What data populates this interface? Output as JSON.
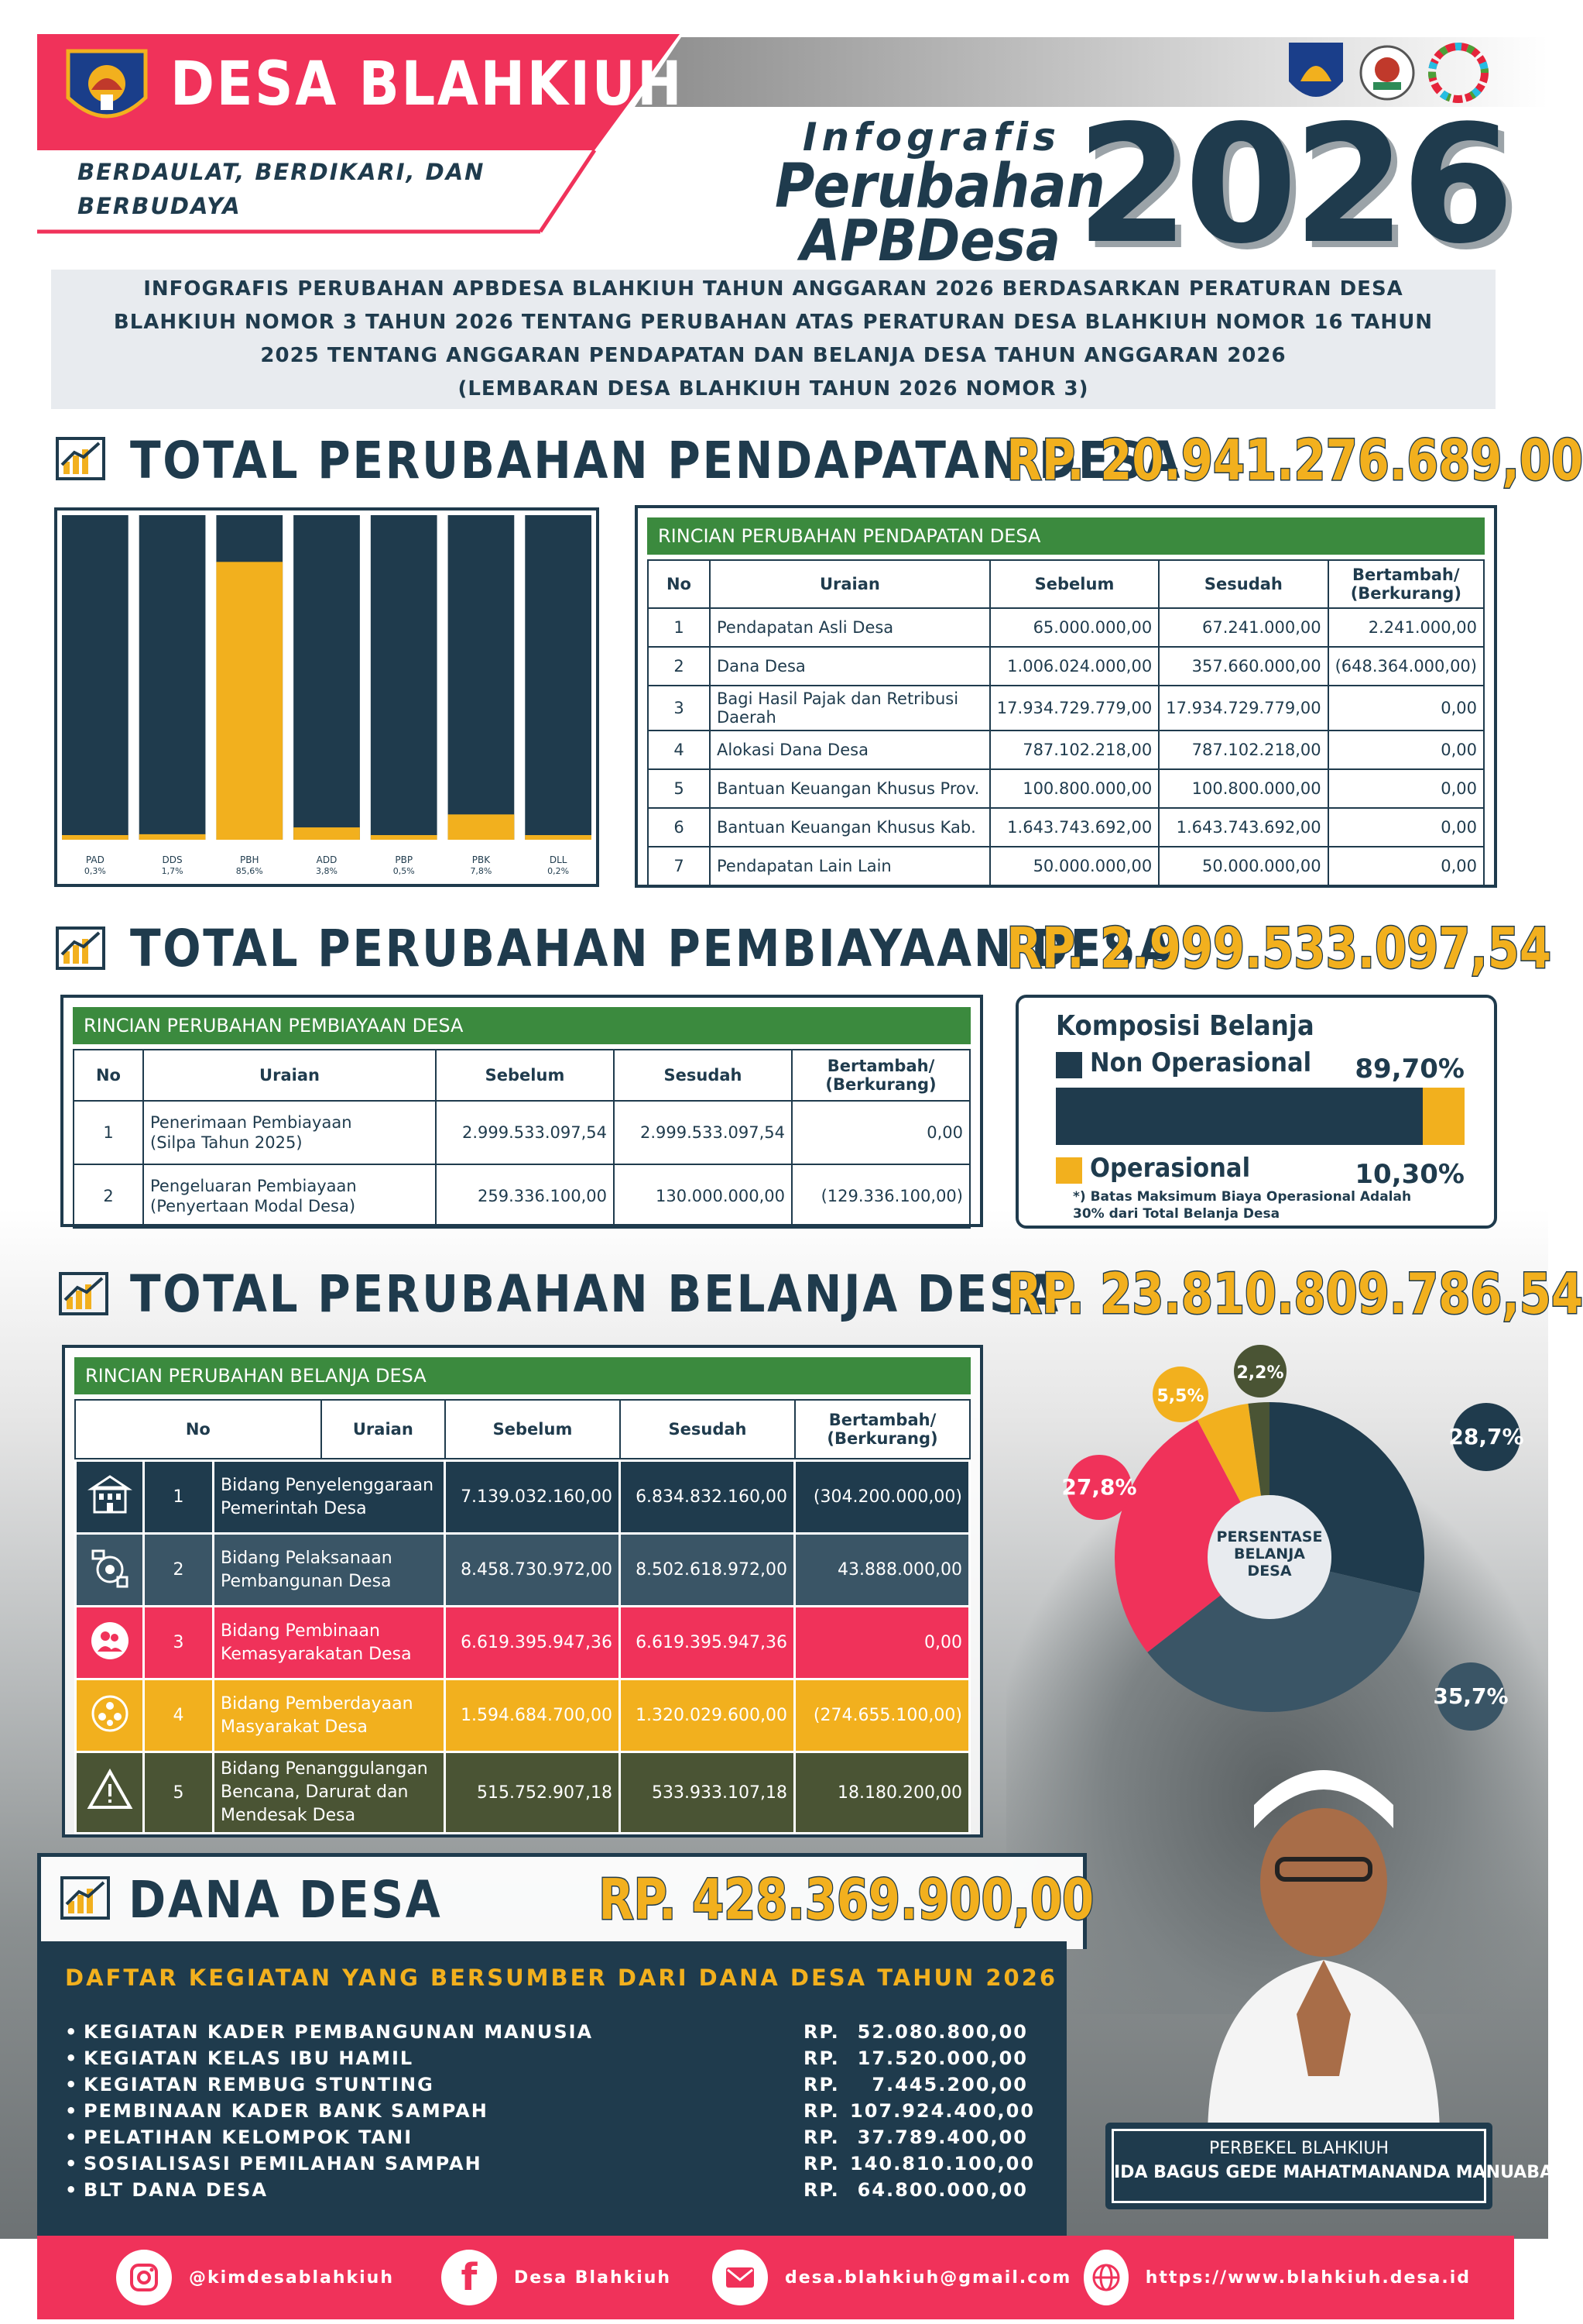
{
  "header": {
    "village": "DESA BLAHKIUH",
    "motto_line1": "BERDAULAT, BERDIKARI, DAN",
    "motto_line2": "BERBUDAYA",
    "info1": "Infografis",
    "info2": "Perubahan",
    "info3": "APBDesa",
    "year": "2026"
  },
  "intro": {
    "line1": "INFOGRAFIS PERUBAHAN APBDESA BLAHKIUH TAHUN ANGGARAN 2026 BERDASARKAN PERATURAN DESA",
    "line2": "BLAHKIUH NOMOR 3 TAHUN 2026 TENTANG PERUBAHAN ATAS PERATURAN DESA BLAHKIUH NOMOR 16 TAHUN",
    "line3": "2025 TENTANG ANGGARAN PENDAPATAN DAN BELANJA DESA TAHUN ANGGARAN 2026",
    "line4": "(LEMBARAN DESA BLAHKIUH TAHUN 2026 NOMOR 3)"
  },
  "pendapatan": {
    "title": "TOTAL PERUBAHAN PENDAPATAN DESA",
    "total": "RP. 20.941.276.689,00",
    "table_title": "RINCIAN PERUBAHAN PENDAPATAN DESA",
    "headers": [
      "No",
      "Uraian",
      "Sebelum",
      "Sesudah",
      "Bertambah/",
      "(Berkurang)"
    ],
    "rows": [
      {
        "no": "1",
        "uraian": "Pendapatan Asli Desa",
        "sebelum": "65.000.000,00",
        "sesudah": "67.241.000,00",
        "selisih": "2.241.000,00"
      },
      {
        "no": "2",
        "uraian": "Dana Desa",
        "sebelum": "1.006.024.000,00",
        "sesudah": "357.660.000,00",
        "selisih": "(648.364.000,00)"
      },
      {
        "no": "3",
        "uraian": "Bagi Hasil Pajak dan Retribusi Daerah",
        "sebelum": "17.934.729.779,00",
        "sesudah": "17.934.729.779,00",
        "selisih": "0,00"
      },
      {
        "no": "4",
        "uraian": "Alokasi Dana Desa",
        "sebelum": "787.102.218,00",
        "sesudah": "787.102.218,00",
        "selisih": "0,00"
      },
      {
        "no": "5",
        "uraian": "Bantuan Keuangan Khusus Prov.",
        "sebelum": "100.800.000,00",
        "sesudah": "100.800.000,00",
        "selisih": "0,00"
      },
      {
        "no": "6",
        "uraian": "Bantuan Keuangan Khusus Kab.",
        "sebelum": "1.643.743.692,00",
        "sesudah": "1.643.743.692,00",
        "selisih": "0,00"
      },
      {
        "no": "7",
        "uraian": "Pendapatan Lain Lain",
        "sebelum": "50.000.000,00",
        "sesudah": "50.000.000,00",
        "selisih": "0,00"
      }
    ]
  },
  "chart_data": [
    {
      "type": "bar",
      "categories": [
        "PAD",
        "DDS",
        "PBH",
        "ADD",
        "PBP",
        "PBK",
        "DLL"
      ],
      "labels": [
        "0,3%",
        "1,7%",
        "85,6%",
        "3,8%",
        "0,5%",
        "7,8%",
        "0,2%"
      ],
      "values": [
        0.3,
        1.7,
        85.6,
        3.8,
        0.5,
        7.8,
        0.2
      ],
      "ylim": [
        0,
        100
      ],
      "colors": {
        "fill": "#f2b01e",
        "track": "#1f3b4d"
      }
    },
    {
      "type": "bar",
      "categories": [
        "Non Operasional",
        "Operasional"
      ],
      "values": [
        89.7,
        10.3
      ],
      "colors": {
        "Non Operasional": "#1f3b4d",
        "Operasional": "#f2b01e"
      }
    },
    {
      "type": "pie",
      "center_label": [
        "PERSENTASE",
        "BELANJA",
        "DESA"
      ],
      "slices": [
        {
          "label": "28,7%",
          "value": 28.7,
          "color": "#1f3b4d"
        },
        {
          "label": "35,7%",
          "value": 35.7,
          "color": "#3a5566"
        },
        {
          "label": "27,8%",
          "value": 27.8,
          "color": "#f0325a"
        },
        {
          "label": "5,5%",
          "value": 5.5,
          "color": "#f2b01e"
        },
        {
          "label": "2,2%",
          "value": 2.2,
          "color": "#4a5434"
        }
      ]
    }
  ],
  "pembiayaan": {
    "title": "TOTAL PERUBAHAN PEMBIAYAAN DESA",
    "total": "RP.  2.999.533.097,54",
    "table_title": "RINCIAN PERUBAHAN PEMBIAYAAN DESA",
    "rows": [
      {
        "no": "1",
        "uraian1": "Penerimaan Pembiayaan",
        "uraian2": "(Silpa Tahun 2025)",
        "sebelum": "2.999.533.097,54",
        "sesudah": "2.999.533.097,54",
        "selisih": "0,00"
      },
      {
        "no": "2",
        "uraian1": "Pengeluaran Pembiayaan",
        "uraian2": "(Penyertaan Modal Desa)",
        "sebelum": "259.336.100,00",
        "sesudah": "130.000.000,00",
        "selisih": "(129.336.100,00)"
      }
    ]
  },
  "komposisi": {
    "title": "Komposisi Belanja",
    "nonop_label": "Non Operasional",
    "nonop_value": "89,70%",
    "op_label": "Operasional",
    "op_value": "10,30%",
    "note1": "*) Batas Maksimum Biaya Operasional Adalah",
    "note2": "30% dari Total Belanja Desa"
  },
  "belanja": {
    "title": "TOTAL PERUBAHAN BELANJA DESA",
    "total": "RP. 23.810.809.786,54",
    "table_title": "RINCIAN PERUBAHAN BELANJA DESA",
    "rows": [
      {
        "no": "1",
        "uraian1": "Bidang Penyelenggaraan",
        "uraian2": "Pemerintah Desa",
        "uraian3": "",
        "sebelum": "7.139.032.160,00",
        "sesudah": "6.834.832.160,00",
        "selisih": "(304.200.000,00)",
        "color": "#1f3b4d",
        "icon": "building-icon"
      },
      {
        "no": "2",
        "uraian1": "Bidang Pelaksanaan",
        "uraian2": "Pembangunan Desa",
        "uraian3": "",
        "sebelum": "8.458.730.972,00",
        "sesudah": "8.502.618.972,00",
        "selisih": "43.888.000,00",
        "color": "#3a5566",
        "icon": "construction-icon"
      },
      {
        "no": "3",
        "uraian1": "Bidang Pembinaan",
        "uraian2": "Kemasyarakatan Desa",
        "uraian3": "",
        "sebelum": "6.619.395.947,36",
        "sesudah": "6.619.395.947,36",
        "selisih": "0,00",
        "color": "#f0325a",
        "icon": "people-icon"
      },
      {
        "no": "4",
        "uraian1": "Bidang Pemberdayaan",
        "uraian2": "Masyarakat Desa",
        "uraian3": "",
        "sebelum": "1.594.684.700,00",
        "sesudah": "1.320.029.600,00",
        "selisih": "(274.655.100,00)",
        "color": "#f2b01e",
        "icon": "community-icon"
      },
      {
        "no": "5",
        "uraian1": "Bidang Penanggulangan",
        "uraian2": "Bencana, Darurat dan",
        "uraian3": "Mendesak Desa",
        "sebelum": "515.752.907,18",
        "sesudah": "533.933.107,18",
        "selisih": "18.180.200,00",
        "color": "#4a5434",
        "icon": "warning-icon"
      }
    ]
  },
  "dana_desa": {
    "title": "DANA DESA",
    "total": "RP.  428.369.900,00",
    "list_title": "DAFTAR KEGIATAN YANG BERSUMBER DARI DANA DESA TAHUN 2026",
    "items": [
      {
        "name": "KEGIATAN KADER PEMBANGUNAN MANUSIA",
        "rp": "RP.",
        "amount": "52.080.800,00"
      },
      {
        "name": "KEGIATAN KELAS IBU HAMIL",
        "rp": "RP.",
        "amount": "17.520.000,00"
      },
      {
        "name": "KEGIATAN REMBUG STUNTING",
        "rp": "RP.",
        "amount": "7.445.200,00"
      },
      {
        "name": "PEMBINAAN KADER BANK SAMPAH",
        "rp": "RP.",
        "amount": "107.924.400,00"
      },
      {
        "name": "PELATIHAN KELOMPOK TANI",
        "rp": "RP.",
        "amount": "37.789.400,00"
      },
      {
        "name": "SOSIALISASI PEMILAHAN SAMPAH",
        "rp": "RP.",
        "amount": "140.810.100,00"
      },
      {
        "name": "BLT DANA DESA",
        "rp": "RP.",
        "amount": "64.800.000,00"
      }
    ]
  },
  "perbekel": {
    "role": "PERBEKEL BLAHKIUH",
    "name": "IDA BAGUS GEDE MAHATMANANDA MANUABA"
  },
  "footer": {
    "instagram": "@kimdesablahkiuh",
    "facebook": "Desa Blahkiuh",
    "email": "desa.blahkiuh@gmail.com",
    "web": "https://www.blahkiuh.desa.id"
  }
}
